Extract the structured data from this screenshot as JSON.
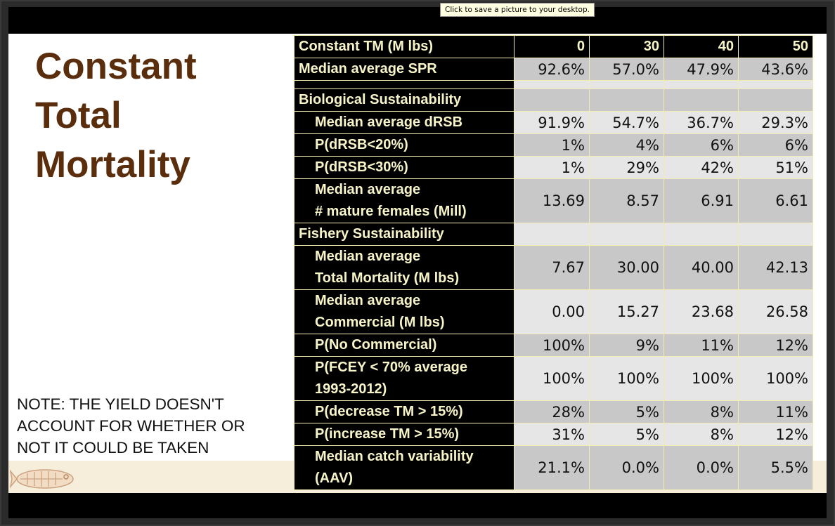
{
  "tooltip": "Click to save a picture to your desktop.",
  "title_lines": [
    "Constant",
    "Total",
    "Mortality"
  ],
  "note_lines": [
    "NOTE: THE YIELD DOESN'T",
    "ACCOUNT FOR WHETHER OR",
    "NOT IT COULD BE TAKEN"
  ],
  "icons": {
    "logo": "fish-logo-icon"
  },
  "colors": {
    "title": "#5a2d0c",
    "label_bg": "#000000",
    "label_text": "#f7f4c8",
    "cell_dark": "#c8c8c8",
    "cell_light": "#e6e6e6",
    "border": "#f2ecb4",
    "footer_band": "#f6eedb"
  },
  "table": {
    "header": {
      "label": "Constant TM (M lbs)",
      "values": [
        "0",
        "30",
        "40",
        "50"
      ]
    },
    "rows": [
      {
        "label_lines": [
          "Median average SPR"
        ],
        "values": [
          "92.6%",
          "57.0%",
          "47.9%",
          "43.6%"
        ]
      },
      {
        "label_lines": [],
        "values": [
          "",
          "",
          "",
          ""
        ]
      },
      {
        "label_lines": [
          "Biological Sustainability"
        ],
        "values": [
          "",
          "",
          "",
          ""
        ]
      },
      {
        "label_lines": [
          "Median average dRSB"
        ],
        "values": [
          "91.9%",
          "54.7%",
          "36.7%",
          "29.3%"
        ]
      },
      {
        "label_lines": [
          "P(dRSB<20%)"
        ],
        "values": [
          "1%",
          "4%",
          "6%",
          "6%"
        ]
      },
      {
        "label_lines": [
          "P(dRSB<30%)"
        ],
        "values": [
          "1%",
          "29%",
          "42%",
          "51%"
        ]
      },
      {
        "label_lines": [
          "Median average",
          "# mature females (Mill)"
        ],
        "values": [
          "13.69",
          "8.57",
          "6.91",
          "6.61"
        ]
      },
      {
        "label_lines": [
          "Fishery Sustainability"
        ],
        "values": [
          "",
          "",
          "",
          ""
        ]
      },
      {
        "label_lines": [
          "Median average",
          "Total Mortality (M lbs)"
        ],
        "values": [
          "7.67",
          "30.00",
          "40.00",
          "42.13"
        ]
      },
      {
        "label_lines": [
          "Median average",
          "Commercial (M lbs)"
        ],
        "values": [
          "0.00",
          "15.27",
          "23.68",
          "26.58"
        ]
      },
      {
        "label_lines": [
          "P(No Commercial)"
        ],
        "values": [
          "100%",
          "9%",
          "11%",
          "12%"
        ]
      },
      {
        "label_lines": [
          "P(FCEY < 70% average",
          "1993-2012)"
        ],
        "values": [
          "100%",
          "100%",
          "100%",
          "100%"
        ]
      },
      {
        "label_lines": [
          "P(decrease TM > 15%)"
        ],
        "values": [
          "28%",
          "5%",
          "8%",
          "11%"
        ]
      },
      {
        "label_lines": [
          "P(increase TM > 15%)"
        ],
        "values": [
          "31%",
          "5%",
          "8%",
          "12%"
        ]
      },
      {
        "label_lines": [
          "Median catch variability",
          "(AAV)"
        ],
        "values": [
          "21.1%",
          "0.0%",
          "0.0%",
          "5.5%"
        ]
      }
    ]
  }
}
